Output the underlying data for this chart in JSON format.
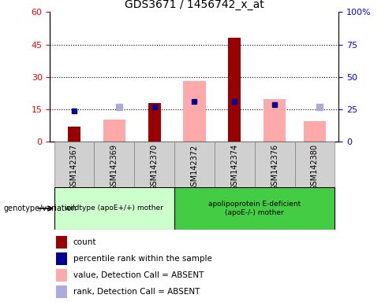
{
  "title": "GDS3671 / 1456742_x_at",
  "samples": [
    "GSM142367",
    "GSM142369",
    "GSM142370",
    "GSM142372",
    "GSM142374",
    "GSM142376",
    "GSM142380"
  ],
  "count_values": [
    7,
    0,
    18,
    0,
    48,
    0,
    0
  ],
  "percentile_rank": [
    24,
    0,
    27,
    31,
    31,
    29,
    0
  ],
  "absent_value": [
    0,
    17,
    0,
    47,
    0,
    33,
    16
  ],
  "absent_rank": [
    0,
    27,
    0,
    0,
    0,
    0,
    27
  ],
  "count_color": "#990000",
  "percentile_color": "#000099",
  "absent_value_color": "#ffaaaa",
  "absent_rank_color": "#aaaadd",
  "ylim_left": [
    0,
    60
  ],
  "ylim_right": [
    0,
    100
  ],
  "yticks_left": [
    0,
    15,
    30,
    45,
    60
  ],
  "yticks_right": [
    0,
    25,
    50,
    75,
    100
  ],
  "group1_label": "wildtype (apoE+/+) mother",
  "group2_label": "apolipoprotein E-deficient\n(apoE-/-) mother",
  "group1_color": "#ccffcc",
  "group2_color": "#44cc44",
  "has_count": [
    true,
    false,
    true,
    false,
    true,
    false,
    false
  ],
  "has_percentile": [
    true,
    false,
    true,
    true,
    true,
    true,
    false
  ],
  "has_absent_value": [
    false,
    true,
    false,
    true,
    false,
    true,
    true
  ],
  "has_absent_rank": [
    false,
    true,
    false,
    false,
    false,
    false,
    true
  ],
  "n_group1": 3,
  "n_group2": 4
}
